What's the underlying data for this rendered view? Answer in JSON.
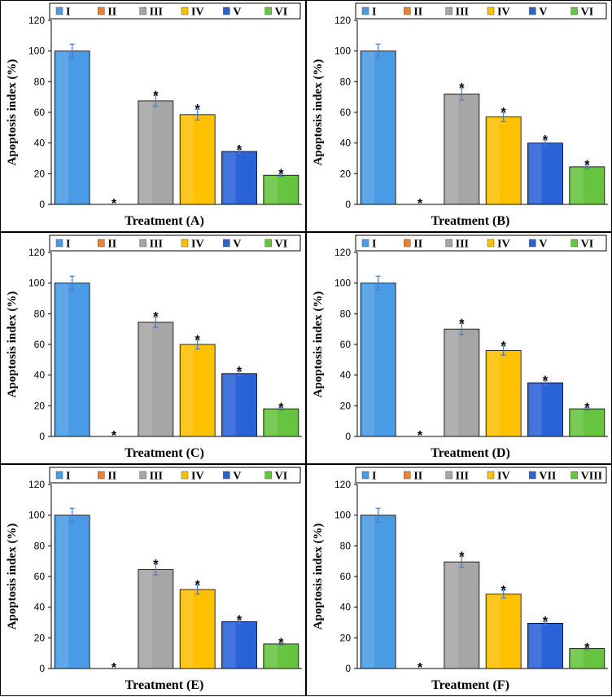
{
  "colors": {
    "I": "#4a9be6",
    "II": "#f07f2e",
    "III": "#a6a6a6",
    "IV": "#ffc000",
    "V": "#2a62d8",
    "VI": "#66c43e",
    "VII": "#2a62d8",
    "VIII": "#66c43e"
  },
  "chart_data": [
    {
      "type": "bar",
      "panel": "A",
      "title": "",
      "xlabel": "Treatment (A)",
      "ylabel": "Apoptosis index (%)",
      "ylim": [
        0,
        120
      ],
      "yticks": [
        "0",
        "20",
        "40",
        "60",
        "80",
        "100",
        "120"
      ],
      "categories": [
        "I",
        "II",
        "III",
        "IV",
        "V",
        "VI"
      ],
      "values": [
        100,
        0,
        67.5,
        58.5,
        34.5,
        19
      ],
      "errors": [
        4.5,
        0,
        3.5,
        3.5,
        1.2,
        0.8
      ],
      "significance": [
        "",
        "*",
        "*",
        "*",
        "*",
        "*"
      ]
    },
    {
      "type": "bar",
      "panel": "B",
      "title": "",
      "xlabel": "Treatment (B)",
      "ylabel": "Apoptosis index (%)",
      "ylim": [
        0,
        120
      ],
      "yticks": [
        "0",
        "20",
        "40",
        "60",
        "80",
        "100",
        "120"
      ],
      "categories": [
        "I",
        "II",
        "III",
        "IV",
        "V",
        "VI"
      ],
      "values": [
        100,
        0,
        72,
        57,
        40,
        24.5
      ],
      "errors": [
        4.5,
        0,
        4,
        3,
        2,
        1.2
      ],
      "significance": [
        "",
        "*",
        "*",
        "*",
        "*",
        "*"
      ]
    },
    {
      "type": "bar",
      "panel": "C",
      "title": "",
      "xlabel": "Treatment (C)",
      "ylabel": "Apoptosis index (%)",
      "ylim": [
        0,
        120
      ],
      "yticks": [
        "0",
        "20",
        "40",
        "60",
        "80",
        "100",
        "120"
      ],
      "categories": [
        "I",
        "II",
        "III",
        "IV",
        "V",
        "VI"
      ],
      "values": [
        100,
        0,
        74.5,
        60,
        41,
        18
      ],
      "errors": [
        4.5,
        0,
        3.5,
        3,
        1.5,
        0.8
      ],
      "significance": [
        "",
        "*",
        "*",
        "*",
        "*",
        "*"
      ]
    },
    {
      "type": "bar",
      "panel": "D",
      "title": "",
      "xlabel": "Treatment (D)",
      "ylabel": "Apoptosis index (%)",
      "ylim": [
        0,
        120
      ],
      "yticks": [
        "0",
        "20",
        "40",
        "60",
        "80",
        "100",
        "120"
      ],
      "categories": [
        "I",
        "II",
        "III",
        "IV",
        "V",
        "VI"
      ],
      "values": [
        100,
        0,
        70,
        56,
        35,
        18
      ],
      "errors": [
        4.5,
        0,
        3.5,
        3,
        1.5,
        0.8
      ],
      "significance": [
        "",
        "*",
        "*",
        "*",
        "*",
        "*"
      ]
    },
    {
      "type": "bar",
      "panel": "E",
      "title": "",
      "xlabel": "Treatment (E)",
      "ylabel": "Apoptosis index (%)",
      "ylim": [
        0,
        120
      ],
      "yticks": [
        "0",
        "20",
        "40",
        "60",
        "80",
        "100",
        "120"
      ],
      "categories": [
        "I",
        "II",
        "III",
        "IV",
        "V",
        "VI"
      ],
      "values": [
        100,
        0,
        64.5,
        51.5,
        30.5,
        16
      ],
      "errors": [
        4.5,
        0,
        3.5,
        3,
        1.2,
        0.6
      ],
      "significance": [
        "",
        "*",
        "*",
        "*",
        "*",
        "*"
      ]
    },
    {
      "type": "bar",
      "panel": "F",
      "title": "",
      "xlabel": "Treatment (F)",
      "ylabel": "Apoptosis index (%)",
      "ylim": [
        0,
        120
      ],
      "yticks": [
        "0",
        "20",
        "40",
        "60",
        "80",
        "100",
        "120"
      ],
      "categories": [
        "I",
        "II",
        "III",
        "IV",
        "VII",
        "VIII"
      ],
      "values": [
        100,
        0,
        69.5,
        48.5,
        29.5,
        13
      ],
      "errors": [
        4.5,
        0,
        3.5,
        2.5,
        1.2,
        0.6
      ],
      "significance": [
        "",
        "*",
        "*",
        "*",
        "*",
        "*"
      ]
    }
  ]
}
